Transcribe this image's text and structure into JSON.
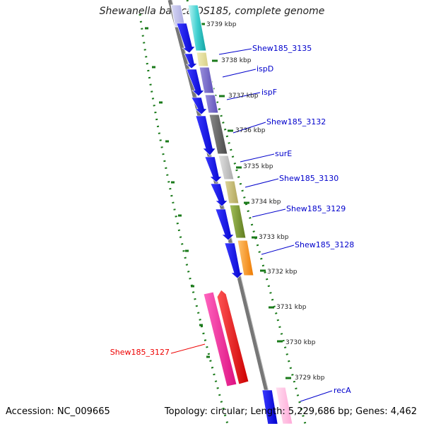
{
  "title": "Shewanella baltica OS185, complete genome",
  "footer": {
    "accession": "Accession: NC_009665",
    "summary": "Topology: circular; Length: 5,229,686 bp; Genes: 4,462"
  },
  "ticks": [
    {
      "label": "3739 kbp",
      "kbp": 3739
    },
    {
      "label": "3738 kbp",
      "kbp": 3738
    },
    {
      "label": "3737 kbp",
      "kbp": 3737
    },
    {
      "label": "3736 kbp",
      "kbp": 3736
    },
    {
      "label": "3735 kbp",
      "kbp": 3735
    },
    {
      "label": "3734 kbp",
      "kbp": 3734
    },
    {
      "label": "3733 kbp",
      "kbp": 3733
    },
    {
      "label": "3732 kbp",
      "kbp": 3732
    },
    {
      "label": "3731 kbp",
      "kbp": 3731
    },
    {
      "label": "3730 kbp",
      "kbp": 3730
    },
    {
      "label": "3729 kbp",
      "kbp": 3729
    }
  ],
  "genes": [
    {
      "name": "Shew185_3135",
      "color": "#0000cc",
      "link": true
    },
    {
      "name": "ispD",
      "color": "#0000cc",
      "link": true
    },
    {
      "name": "ispF",
      "color": "#0000cc",
      "link": true
    },
    {
      "name": "Shew185_3132",
      "color": "#0000cc",
      "link": true
    },
    {
      "name": "surE",
      "color": "#0000cc",
      "link": true
    },
    {
      "name": "Shew185_3130",
      "color": "#0000cc",
      "link": true
    },
    {
      "name": "Shew185_3129",
      "color": "#0000cc",
      "link": true
    },
    {
      "name": "Shew185_3128",
      "color": "#0000cc",
      "link": true
    },
    {
      "name": "Shew185_3127",
      "color": "#ee0000",
      "link": true
    },
    {
      "name": "recA",
      "color": "#0000cc",
      "link": true
    }
  ],
  "colors": {
    "backbone": "#777777",
    "tick": "#1a7a1a",
    "cds": "#0000ee",
    "trna": "#ff1493"
  }
}
